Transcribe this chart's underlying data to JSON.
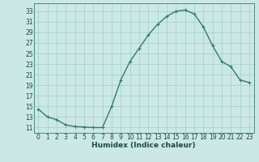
{
  "x": [
    0,
    1,
    2,
    3,
    4,
    5,
    6,
    7,
    8,
    9,
    10,
    11,
    12,
    13,
    14,
    15,
    16,
    17,
    18,
    19,
    20,
    21,
    22,
    23
  ],
  "y": [
    14.5,
    13.0,
    12.5,
    11.5,
    11.2,
    11.1,
    11.0,
    11.0,
    15.0,
    20.0,
    23.5,
    26.0,
    28.5,
    30.5,
    32.0,
    33.0,
    33.2,
    32.5,
    30.0,
    26.5,
    23.5,
    22.5,
    20.0,
    19.5
  ],
  "line_color": "#2e7d6e",
  "marker": "+",
  "marker_size": 3,
  "bg_color": "#cce8e6",
  "grid_color": "#9ecfcc",
  "xlabel": "Humidex (Indice chaleur)",
  "ylabel_ticks": [
    11,
    13,
    15,
    17,
    19,
    21,
    23,
    25,
    27,
    29,
    31,
    33
  ],
  "xtick_labels": [
    "0",
    "1",
    "2",
    "3",
    "4",
    "5",
    "6",
    "7",
    "8",
    "9",
    "10",
    "11",
    "12",
    "13",
    "14",
    "15",
    "16",
    "17",
    "18",
    "19",
    "20",
    "21",
    "22",
    "23"
  ],
  "xlim": [
    -0.5,
    23.5
  ],
  "ylim": [
    10.0,
    34.5
  ],
  "xlabel_fontsize": 6.5,
  "tick_fontsize": 5.5,
  "line_width": 1.0
}
